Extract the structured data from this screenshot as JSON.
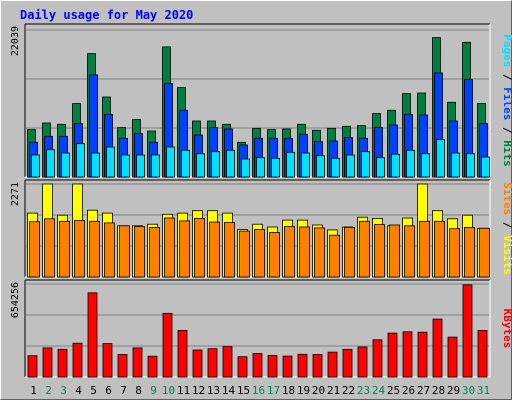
{
  "chart_data": {
    "type": "bar",
    "title": "Daily usage for May 2020",
    "categories": [
      "1",
      "2",
      "3",
      "4",
      "5",
      "6",
      "7",
      "8",
      "9",
      "10",
      "11",
      "12",
      "13",
      "14",
      "15",
      "16",
      "17",
      "18",
      "19",
      "20",
      "21",
      "22",
      "23",
      "24",
      "25",
      "26",
      "27",
      "28",
      "29",
      "30",
      "31"
    ],
    "weekend_days": [
      "2",
      "3",
      "9",
      "10",
      "16",
      "17",
      "23",
      "24",
      "30",
      "31"
    ],
    "panels": [
      {
        "name": "hits-files-pages",
        "max_label": "22039",
        "ymax": 22039,
        "right_labels": [
          "Pages",
          "Files",
          "Hits"
        ],
        "series": [
          {
            "name": "Hits",
            "color": "#008040",
            "values": [
              7100,
              8100,
              7900,
              11000,
              18500,
              12000,
              7400,
              8600,
              6900,
              19500,
              13400,
              8400,
              8400,
              7900,
              5200,
              7300,
              7100,
              7200,
              7900,
              7000,
              7300,
              7600,
              7700,
              9500,
              10000,
              12500,
              12600,
              20900,
              11200,
              20200,
              11000
            ]
          },
          {
            "name": "Files",
            "color": "#0040ff",
            "values": [
              5200,
              6100,
              6100,
              8000,
              15300,
              9400,
              5800,
              6500,
              5200,
              14000,
              10000,
              6300,
              7400,
              7200,
              4800,
              5800,
              5800,
              5800,
              6400,
              5300,
              5400,
              5900,
              5800,
              7400,
              7800,
              9400,
              9300,
              15600,
              8400,
              14600,
              8000
            ]
          },
          {
            "name": "Pages",
            "color": "#00e0ff",
            "values": [
              3300,
              4100,
              3600,
              5000,
              3600,
              4500,
              3300,
              3300,
              3300,
              4500,
              4000,
              3500,
              3800,
              4000,
              2700,
              2900,
              2800,
              3700,
              3600,
              3200,
              2800,
              3300,
              3800,
              2900,
              3400,
              4000,
              3500,
              5600,
              3600,
              3500,
              3000
            ]
          }
        ]
      },
      {
        "name": "visits-sites",
        "max_label": "2271",
        "ymax": 2271,
        "right_labels": [
          "Sites",
          "Visits"
        ],
        "series": [
          {
            "name": "Visits",
            "color": "#ffff00",
            "values": [
              1560,
              2271,
              1510,
              2271,
              1630,
              1560,
              1250,
              1250,
              1290,
              1530,
              1560,
              1620,
              1620,
              1560,
              1160,
              1290,
              1220,
              1390,
              1390,
              1270,
              1150,
              1220,
              1460,
              1430,
              1250,
              1440,
              2271,
              1620,
              1420,
              1510,
              1190
            ]
          },
          {
            "name": "Sites",
            "color": "#ff8000",
            "values": [
              1350,
              1420,
              1360,
              1380,
              1360,
              1320,
              1250,
              1230,
              1210,
              1440,
              1370,
              1430,
              1340,
              1330,
              1120,
              1160,
              1090,
              1230,
              1220,
              1200,
              1020,
              1210,
              1360,
              1280,
              1270,
              1250,
              1360,
              1360,
              1180,
              1210,
              1190
            ]
          }
        ]
      },
      {
        "name": "kbytes",
        "max_label": "654256",
        "ymax": 654256,
        "right_labels": [
          "KBytes"
        ],
        "series": [
          {
            "name": "KBytes",
            "color": "#ff0000",
            "values": [
              150000,
              205000,
              195000,
              238000,
              592000,
              235000,
              158000,
              205000,
              146000,
              448000,
              328000,
              190000,
              199000,
              213000,
              143000,
              165000,
              151000,
              147000,
              160000,
              158000,
              175000,
              195000,
              211000,
              262000,
              309000,
              318000,
              315000,
              407000,
              281000,
              648000,
              327000
            ]
          }
        ]
      }
    ]
  }
}
